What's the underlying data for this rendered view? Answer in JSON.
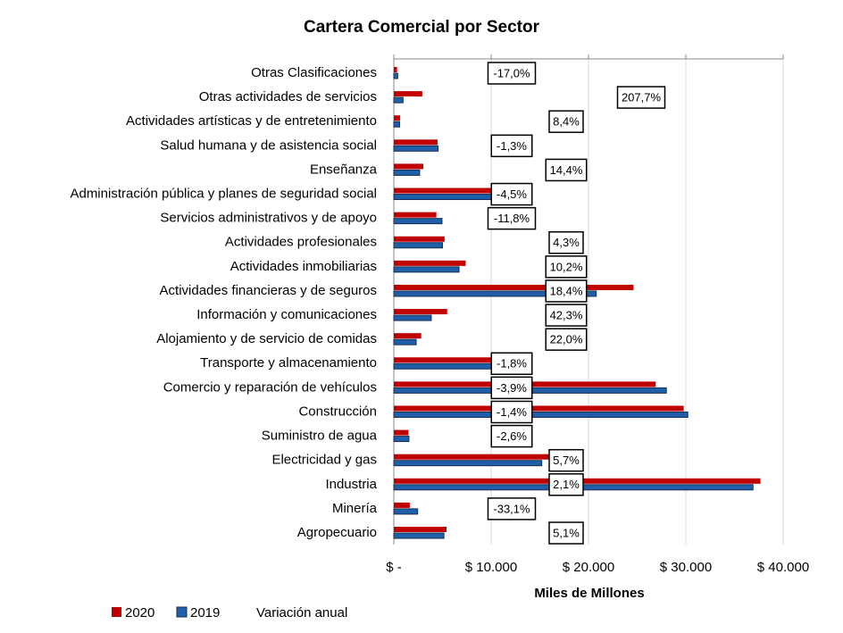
{
  "chart_data": {
    "type": "hbar_grouped",
    "title": "Cartera Comercial por Sector",
    "x_label": "Miles de Millones",
    "categories": [
      "Otras Clasificaciones",
      "Otras actividades de servicios",
      "Actividades artísticas y de entretenimiento",
      "Salud humana y de asistencia social",
      "Enseñanza",
      "Administración pública y planes de seguridad social",
      "Servicios administrativos y de apoyo",
      "Actividades profesionales",
      "Actividades inmobiliarias",
      "Actividades financieras y de seguros",
      "Información y comunicaciones",
      "Alojamiento y de servicio de comidas",
      "Transporte y almacenamiento",
      "Comercio y reparación de vehículos",
      "Construcción",
      "Suministro de agua",
      "Electricidad y gas",
      "Industria",
      "Minería",
      "Agropecuario"
    ],
    "series": [
      {
        "name": "2020",
        "color": "#c00000",
        "values": [
          330,
          2920,
          650,
          4490,
          3030,
          10500,
          4370,
          5215,
          7380,
          24630,
          5480,
          2810,
          11200,
          26900,
          29780,
          1510,
          16070,
          37670,
          1640,
          5410
        ]
      },
      {
        "name": "2019",
        "color": "#1f5fa8",
        "values": [
          400,
          950,
          600,
          4550,
          2650,
          11000,
          4950,
          5000,
          6700,
          20800,
          3850,
          2300,
          11400,
          28000,
          30200,
          1550,
          15200,
          36900,
          2450,
          5150
        ]
      },
      {
        "name": "Variación anual",
        "values": [
          -17.0,
          207.7,
          8.4,
          -1.3,
          14.4,
          -4.5,
          -11.8,
          4.3,
          10.2,
          18.4,
          42.3,
          22.0,
          -1.8,
          -3.9,
          -1.4,
          -2.6,
          5.7,
          2.1,
          -33.1,
          5.1
        ],
        "value_labels": [
          "-17,0%",
          "207,7%",
          "8,4%",
          "-1,3%",
          "14,4%",
          "-4,5%",
          "-11,8%",
          "4,3%",
          "10,2%",
          "18,4%",
          "42,3%",
          "22,0%",
          "-1,8%",
          "-3,9%",
          "-1,4%",
          "-2,6%",
          "5,7%",
          "2,1%",
          "-33,1%",
          "5,1%"
        ]
      }
    ],
    "xlim": [
      0,
      40000
    ],
    "xticks": [
      {
        "value": 0,
        "label": "$ -"
      },
      {
        "value": 10000,
        "label": "$ 10.000"
      },
      {
        "value": 20000,
        "label": "$ 20.000"
      },
      {
        "value": 30000,
        "label": "$ 30.000"
      },
      {
        "value": 40000,
        "label": "$ 40.000"
      }
    ]
  }
}
